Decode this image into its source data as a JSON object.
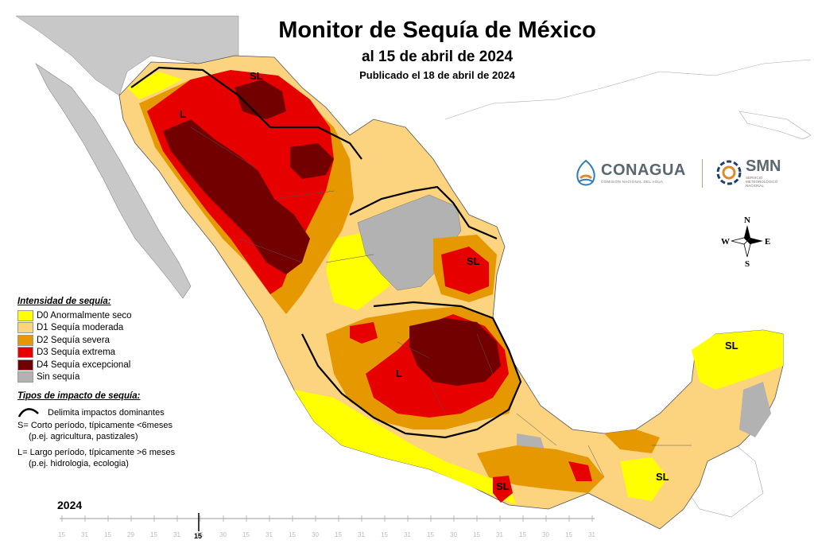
{
  "map": {
    "title": "Monitor de Sequía de México",
    "subtitle": "al 15 de abril de 2024",
    "published": "Publicado el 18 de abril de 2024",
    "colors": {
      "D0": "#ffff00",
      "D1": "#fcd37f",
      "D2": "#e69800",
      "D3": "#e60000",
      "D4": "#730000",
      "none": "#b2b2b2",
      "ocean": "#ffffff",
      "neighbor": "#c8c8c8"
    },
    "impact_labels": [
      "SL",
      "L",
      "SL",
      "L",
      "SL",
      "SL",
      "SL"
    ]
  },
  "legend": {
    "heading": "Intensidad de sequía:",
    "items": [
      {
        "code": "D0",
        "label": "D0 Anormalmente seco"
      },
      {
        "code": "D1",
        "label": "D1 Sequía moderada"
      },
      {
        "code": "D2",
        "label": "D2 Sequía severa"
      },
      {
        "code": "D3",
        "label": "D3 Sequía extrema"
      },
      {
        "code": "D4",
        "label": "D4 Sequía excepcional"
      },
      {
        "code": "none",
        "label": "Sin sequía"
      }
    ],
    "impact_heading": "Tipos de impacto de sequía:",
    "impact_line_label": "Delimita impactos dominantes",
    "short_term_1": "S= Corto período, típicamente <6meses",
    "short_term_2": "(p.ej. agricultura, pastizales)",
    "long_term_1": "L= Largo período, típicamente >6 meses",
    "long_term_2": "(p.ej. hidrologia, ecologia)"
  },
  "logos": {
    "conagua": "CONAGUA",
    "conagua_sub": "COMISIÓN NACIONAL DEL AGUA",
    "smn": "SMN",
    "smn_sub_1": "SERVICIO",
    "smn_sub_2": "METEOROLÓGICO",
    "smn_sub_3": "NACIONAL"
  },
  "compass": {
    "n": "N",
    "s": "S",
    "e": "E",
    "w": "W"
  },
  "timeline": {
    "year": "2024",
    "current_label": "15",
    "tick_labels": [
      "15",
      "31",
      "15",
      "29",
      "15",
      "31",
      "15",
      "30",
      "15",
      "31",
      "15",
      "30",
      "15",
      "31",
      "15",
      "31",
      "15",
      "30",
      "15",
      "31",
      "15",
      "30",
      "15",
      "31"
    ]
  }
}
